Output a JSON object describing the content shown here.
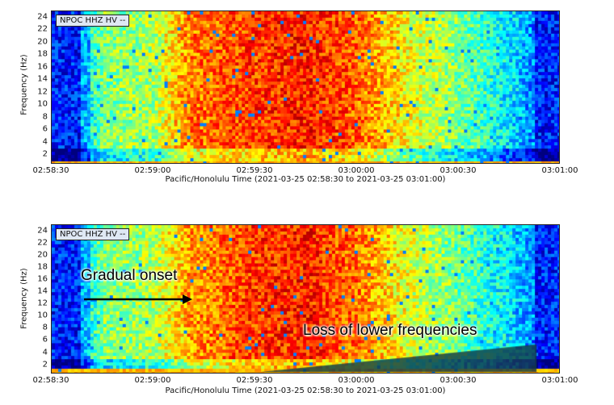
{
  "chart_data": [
    {
      "type": "heatmap",
      "station_label": "NPOC HHZ HV --",
      "ylabel": "Frequency (Hz)",
      "xlabel": "Pacific/Honolulu Time (2021-03-25 02:58:30 to 2021-03-25 03:01:00)",
      "x_ticks": [
        "02:58:30",
        "02:59:00",
        "02:59:30",
        "03:00:00",
        "03:00:30",
        "03:01:00"
      ],
      "y_ticks": [
        "2",
        "4",
        "6",
        "8",
        "10",
        "12",
        "14",
        "16",
        "18",
        "20",
        "22",
        "24"
      ],
      "ylim": [
        0.5,
        25
      ],
      "colormap": "jet",
      "relative_power_by_time": {
        "times": [
          "02:58:30",
          "02:58:45",
          "02:59:00",
          "02:59:10",
          "02:59:30",
          "02:59:45",
          "03:00:00",
          "03:00:15",
          "03:00:30",
          "03:00:45",
          "03:01:00"
        ],
        "values": [
          0.15,
          0.5,
          0.55,
          0.75,
          0.82,
          0.85,
          0.78,
          0.62,
          0.5,
          0.35,
          0.15
        ]
      }
    },
    {
      "type": "heatmap",
      "station_label": "NPOC HHZ HV --",
      "ylabel": "Frequency (Hz)",
      "xlabel": "Pacific/Honolulu Time (2021-03-25 02:58:30 to 2021-03-25 03:01:00)",
      "x_ticks": [
        "02:58:30",
        "02:59:00",
        "02:59:30",
        "03:00:00",
        "03:00:30",
        "03:01:00"
      ],
      "y_ticks": [
        "2",
        "4",
        "6",
        "8",
        "10",
        "12",
        "14",
        "16",
        "18",
        "20",
        "22",
        "24"
      ],
      "ylim": [
        0.5,
        25
      ],
      "colormap": "jet",
      "relative_power_by_time": {
        "times": [
          "02:58:30",
          "02:58:45",
          "02:59:00",
          "02:59:10",
          "02:59:30",
          "02:59:45",
          "03:00:00",
          "03:00:15",
          "03:00:30",
          "03:00:45",
          "03:01:00"
        ],
        "values": [
          0.15,
          0.5,
          0.55,
          0.72,
          0.82,
          0.85,
          0.76,
          0.6,
          0.48,
          0.35,
          0.15
        ]
      },
      "annotations": {
        "onset": "Gradual onset",
        "loss": "Loss of lower frequencies",
        "loss_shade_color": "#1f4f55"
      }
    }
  ]
}
